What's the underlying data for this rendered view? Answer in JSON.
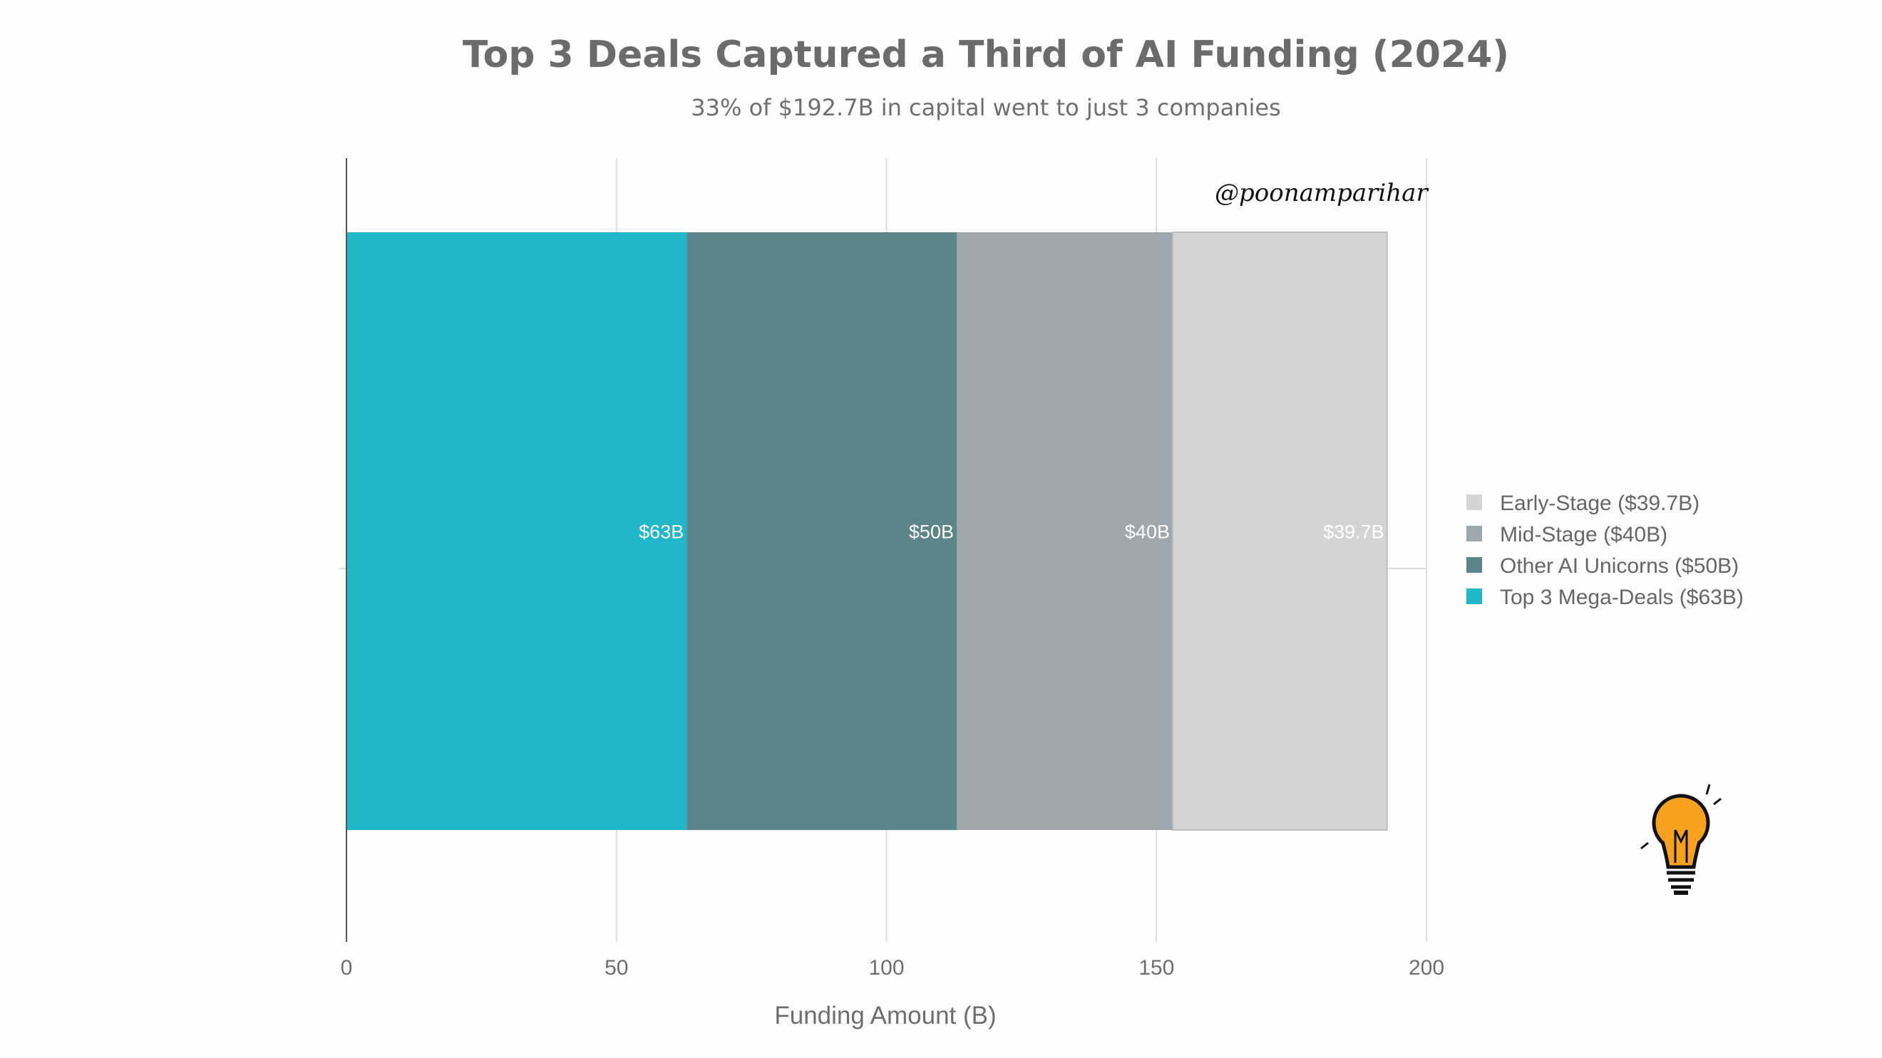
{
  "chart_data": {
    "type": "bar",
    "orientation": "horizontal",
    "stacked": true,
    "title": "Top 3 Deals Captured a Third of AI Funding (2024)",
    "subtitle": "33% of $192.7B in capital went to just 3 companies",
    "xlabel": "Funding Amount (B)",
    "ylabel": "",
    "xlim": [
      0,
      200
    ],
    "xticks": [
      0,
      50,
      100,
      150,
      200
    ],
    "grid": true,
    "legend_position": "right",
    "categories": [
      ""
    ],
    "series": [
      {
        "name": "Top 3 Mega-Deals ($63B)",
        "values": [
          63
        ],
        "label": "$63B",
        "color": "#20b7ca"
      },
      {
        "name": "Other AI Unicorns ($50B)",
        "values": [
          50
        ],
        "label": "$50B",
        "color": "#5b8589"
      },
      {
        "name": "Mid-Stage ($40B)",
        "values": [
          40
        ],
        "label": "$40B",
        "color": "#9ea7ae"
      },
      {
        "name": "Early-Stage ($39.7B)",
        "values": [
          39.7
        ],
        "label": "$39.7B",
        "color": "#d4d4d4"
      }
    ],
    "legend_order": [
      "Early-Stage ($39.7B)",
      "Mid-Stage ($40B)",
      "Other AI Unicorns ($50B)",
      "Top 3 Mega-Deals ($63B)"
    ],
    "annotation": "@poonamparihar"
  }
}
